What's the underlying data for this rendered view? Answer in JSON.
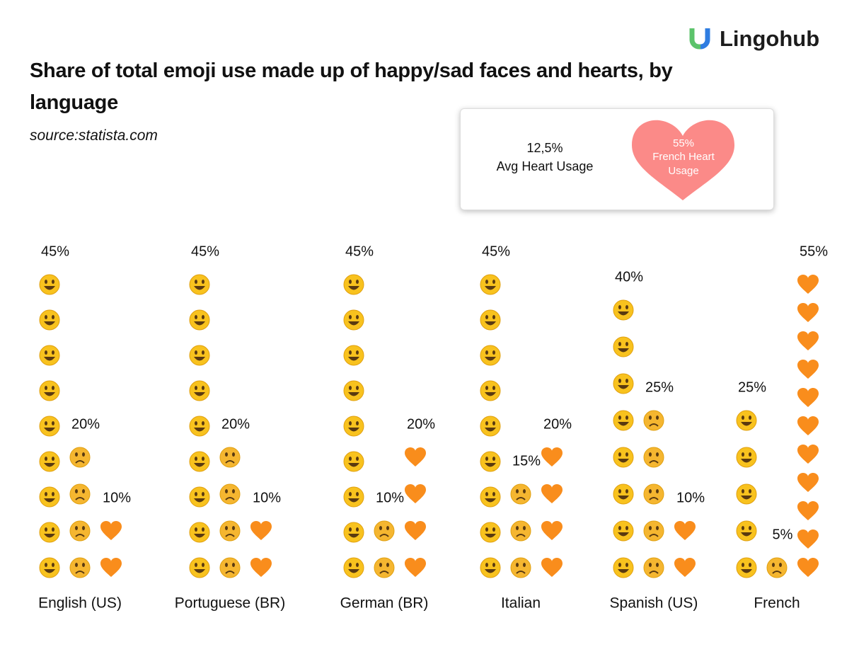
{
  "logo": "Lingohub",
  "chart_data": {
    "type": "pictograph",
    "title": "Share of total emoji use made up of happy/sad faces and hearts, by language",
    "subtitle": "source:statista.com",
    "categories": [
      "English (US)",
      "Portuguese (BR)",
      "German (BR)",
      "Italian",
      "Spanish (US)",
      "French"
    ],
    "series": [
      {
        "kind": "happy",
        "color": "#f8c21e",
        "values": [
          45,
          45,
          45,
          45,
          40,
          25
        ],
        "value_labels": [
          "45%",
          "45%",
          "45%",
          "45%",
          "40%",
          "25%"
        ]
      },
      {
        "kind": "sad",
        "color": "#f5b630",
        "values": [
          20,
          20,
          10,
          15,
          25,
          5
        ],
        "value_labels": [
          "20%",
          "20%",
          "10%",
          "15%",
          "25%",
          "5%"
        ]
      },
      {
        "kind": "heart",
        "color": "#f98d1c",
        "values": [
          10,
          10,
          20,
          20,
          10,
          55
        ],
        "value_labels": [
          "10%",
          "10%",
          "20%",
          "20%",
          "10%",
          "55%"
        ]
      }
    ]
  },
  "info": {
    "avg_value": "12,5%",
    "avg_label": "Avg Heart Usage",
    "french_value": "55%",
    "french_label": "French Heart Usage"
  }
}
